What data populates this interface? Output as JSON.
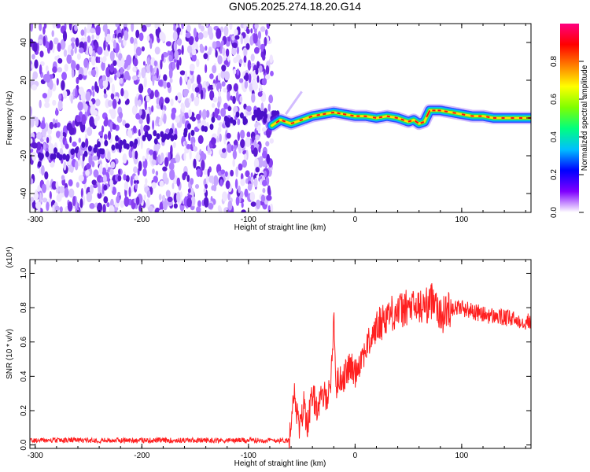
{
  "title": "GN05.2025.274.18.20.G14",
  "chart_data": [
    {
      "type": "heatmap",
      "xlabel": "Height of straight line (km)",
      "ylabel": "Frequency (Hz)",
      "xlim": [
        -305,
        165
      ],
      "ylim": [
        -50,
        50
      ],
      "xticks": [
        -300,
        -200,
        -100,
        0,
        100
      ],
      "yticks": [
        -40,
        -20,
        0,
        20,
        40
      ],
      "colorbar": {
        "label": "Normalized spectral amplitude",
        "range": [
          0,
          1
        ],
        "ticks": [
          0.0,
          0.2,
          0.4,
          0.6,
          0.8
        ],
        "tick_labels": [
          "0.0",
          "0.2",
          "0.4",
          "0.6",
          "0.8"
        ],
        "colors": [
          "#ffffff",
          "#7f00ff",
          "#0000ff",
          "#00bfff",
          "#00ff7f",
          "#7fff00",
          "#ffff00",
          "#ff7f00",
          "#ff0000",
          "#ff0080"
        ]
      },
      "noise_region_x": [
        -305,
        -78
      ],
      "noise_amplitude_range": [
        0.0,
        0.25
      ],
      "ridge": {
        "x": [
          -78,
          -70,
          -60,
          -50,
          -40,
          -30,
          -20,
          -10,
          0,
          10,
          20,
          30,
          40,
          45,
          50,
          55,
          60,
          65,
          70,
          80,
          90,
          100,
          110,
          120,
          130,
          140,
          150,
          160,
          165
        ],
        "freq": [
          -4,
          -1,
          -3,
          -1,
          1,
          2,
          3,
          2,
          1,
          1,
          0,
          1,
          0,
          -1,
          -2,
          -1,
          -3,
          -2,
          4,
          4,
          3,
          2,
          1,
          1,
          0,
          0,
          0,
          0,
          0
        ],
        "amplitude": 0.8
      },
      "faint_streak": {
        "x": [
          -65,
          -50
        ],
        "freq": [
          2,
          14
        ]
      }
    },
    {
      "type": "line",
      "xlabel": "Height of straight line (km)",
      "ylabel": "SNR (10 * v/v)",
      "y_multiplier": "(x10⁴)",
      "xlim": [
        -305,
        165
      ],
      "ylim": [
        -0.02,
        1.08
      ],
      "xticks": [
        -300,
        -200,
        -100,
        0,
        100
      ],
      "yticks": [
        0.0,
        0.2,
        0.4,
        0.6,
        0.8,
        1.0
      ],
      "ytick_labels": [
        "0.0",
        "0.2",
        "0.4",
        "0.6",
        "0.8",
        "1.0"
      ],
      "color": "#ff2020",
      "series": [
        {
          "x": [
            -305,
            -250,
            -200,
            -150,
            -100,
            -70,
            -62,
            -58,
            -55,
            -52,
            -48,
            -45,
            -40,
            -35,
            -30,
            -25,
            -22,
            -20,
            -18,
            -15,
            -10,
            -5,
            0,
            5,
            10,
            15,
            20,
            25,
            30,
            40,
            50,
            60,
            70,
            75,
            80,
            85,
            90,
            100,
            110,
            120,
            130,
            140,
            150,
            160,
            165
          ],
          "y": [
            0.02,
            0.02,
            0.01,
            0.01,
            0.01,
            0.02,
            0.03,
            0.32,
            0.22,
            0.08,
            0.24,
            0.12,
            0.28,
            0.22,
            0.28,
            0.3,
            0.42,
            0.78,
            0.34,
            0.38,
            0.4,
            0.46,
            0.42,
            0.5,
            0.56,
            0.62,
            0.68,
            0.72,
            0.76,
            0.78,
            0.8,
            0.8,
            0.82,
            0.88,
            0.74,
            0.78,
            0.8,
            0.8,
            0.78,
            0.76,
            0.75,
            0.74,
            0.73,
            0.72,
            0.72
          ]
        }
      ]
    }
  ]
}
